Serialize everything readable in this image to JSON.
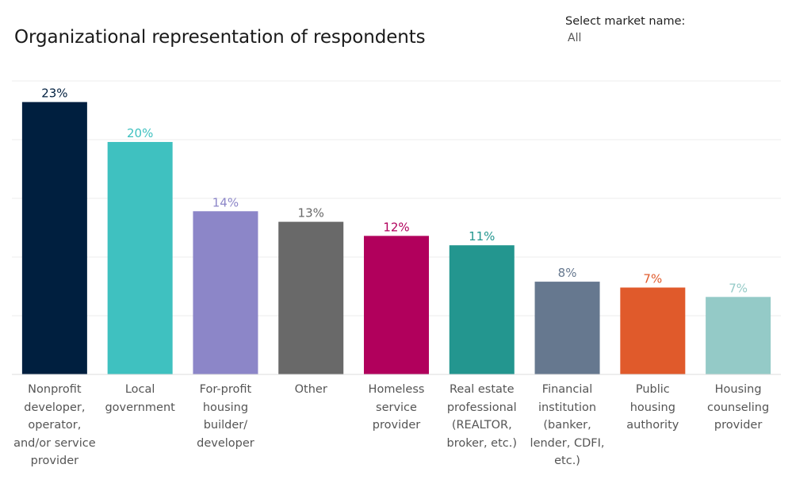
{
  "title": "Organizational representation of respondents",
  "filter": {
    "label": "Select market name:",
    "value": "All"
  },
  "chart_data": {
    "type": "bar",
    "title": "Organizational representation of respondents",
    "xlabel": "",
    "ylabel": "",
    "ylim": [
      0,
      25
    ],
    "grid": true,
    "categories": [
      "Nonprofit developer, operator, and/or service provider",
      "Local government",
      "For-profit housing builder/ developer",
      "Other",
      "Homeless service provider",
      "Real estate professional (REALTOR, broker, etc.)",
      "Financial institution (banker, lender, CDFI, etc.)",
      "Public housing authority",
      "Housing counseling provider"
    ],
    "category_lines": [
      [
        "Nonprofit",
        "developer,",
        "operator,",
        "and/or service",
        "provider"
      ],
      [
        "Local",
        "government"
      ],
      [
        "For-profit",
        "housing",
        "builder/",
        "developer"
      ],
      [
        "Other"
      ],
      [
        "Homeless",
        "service",
        "provider"
      ],
      [
        "Real estate",
        "professional",
        "(REALTOR,",
        "broker, etc.)"
      ],
      [
        "Financial",
        "institution",
        "(banker,",
        "lender, CDFI,",
        "etc.)"
      ],
      [
        "Public",
        "housing",
        "authority"
      ],
      [
        "Housing",
        "counseling",
        "provider"
      ]
    ],
    "values": [
      23.2,
      19.8,
      13.9,
      13.0,
      11.8,
      11.0,
      7.9,
      7.4,
      6.6
    ],
    "labels": [
      "23%",
      "20%",
      "14%",
      "13%",
      "12%",
      "11%",
      "8%",
      "7%",
      "7%"
    ],
    "colors": [
      "#001f3f",
      "#3fc1c0",
      "#8c86c8",
      "#696969",
      "#b1005c",
      "#23968f",
      "#66788f",
      "#e05a2b",
      "#94cac7"
    ]
  }
}
